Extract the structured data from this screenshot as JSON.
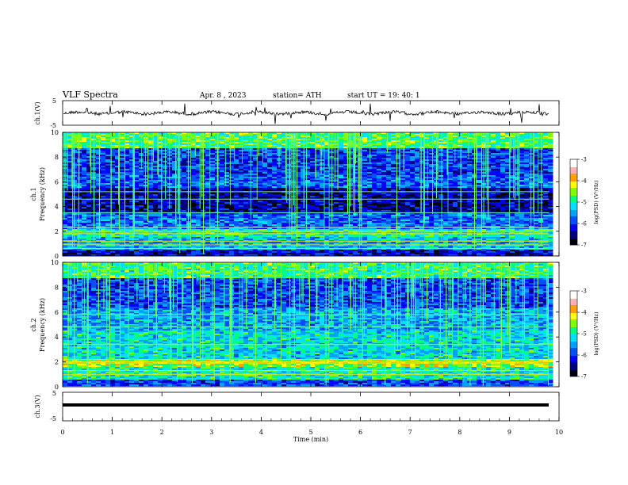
{
  "header": {
    "title": "VLF  Spectra",
    "date": "Apr. 8  , 2023",
    "station": "station= ATH",
    "start": "start  UT  =    19: 40: 1"
  },
  "x_axis": {
    "label": "Time  (min)",
    "ticks": [
      "0",
      "1",
      "2",
      "3",
      "4",
      "5",
      "6",
      "7",
      "8",
      "9",
      "10"
    ]
  },
  "panels": {
    "wave1": {
      "ylabel": "ch.1(V)",
      "ticks": [
        "5",
        "-5"
      ]
    },
    "spec1": {
      "ylabel_top": "ch.1",
      "ylabel": "Frequency  (kHz)",
      "ticks": [
        "10",
        "8",
        "6",
        "4",
        "2",
        "0"
      ]
    },
    "spec2": {
      "ylabel_top": "ch.2",
      "ylabel": "Frequency  (kHz)",
      "ticks": [
        "10",
        "8",
        "6",
        "4",
        "2",
        "0"
      ]
    },
    "wave3": {
      "ylabel": "ch.3(V)",
      "ticks": [
        "5",
        "-5"
      ]
    }
  },
  "colorbar": {
    "label": "log(PSD) (V²/Hz)",
    "ticks": [
      "-3",
      "-4",
      "-5",
      "-6",
      "-7"
    ],
    "colors": [
      "#ffffff",
      "#ff0000",
      "#ffd700",
      "#00ff00",
      "#00c8ff",
      "#0000ff",
      "#000000"
    ]
  },
  "chart_data": [
    {
      "type": "line",
      "title": "VLF  Spectra",
      "ylabel": "ch.1(V)",
      "xlabel": "Time  (min)",
      "xlim": [
        0,
        10
      ],
      "ylim": [
        -5,
        5
      ],
      "x": [
        0,
        1,
        2,
        3,
        4,
        5,
        6,
        7,
        8,
        9,
        9.8
      ],
      "y": [
        0,
        0.3,
        -0.2,
        0.2,
        0,
        0.1,
        -0.3,
        0.2,
        0.1,
        -0.1,
        0
      ]
    },
    {
      "type": "heatmap",
      "ylabel": "Frequency  (kHz)",
      "channel": "ch.1",
      "xlim": [
        0,
        10
      ],
      "ylim": [
        0,
        10
      ],
      "zlim": [
        -7,
        -3
      ],
      "zlabel": "log(PSD) (V²/Hz)"
    },
    {
      "type": "heatmap",
      "ylabel": "Frequency  (kHz)",
      "channel": "ch.2",
      "xlim": [
        0,
        10
      ],
      "ylim": [
        0,
        10
      ],
      "zlim": [
        -7,
        -3
      ],
      "zlabel": "log(PSD) (V²/Hz)"
    },
    {
      "type": "line",
      "ylabel": "ch.3(V)",
      "xlabel": "Time  (min)",
      "xlim": [
        0,
        10
      ],
      "ylim": [
        -5,
        5
      ],
      "x": [
        0,
        9.8
      ],
      "y": [
        0,
        0
      ]
    }
  ]
}
